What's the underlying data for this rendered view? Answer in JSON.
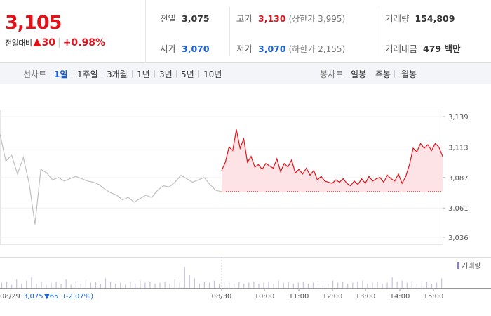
{
  "quote": {
    "price": "3,105",
    "change_label": "전일대비",
    "change_amount": "30",
    "change_percent": "+0.98%",
    "stats": [
      {
        "label": "전일",
        "value": "3,075",
        "tone": "neutral"
      },
      {
        "label": "고가",
        "value": "3,130",
        "tone": "up",
        "limit": "(상한가 3,995)"
      },
      {
        "label": "거래량",
        "value": "154,809",
        "tone": "neutral"
      },
      {
        "label": "시가",
        "value": "3,070",
        "tone": "down"
      },
      {
        "label": "저가",
        "value": "3,070",
        "tone": "down",
        "limit": "(하한가 2,155)"
      },
      {
        "label": "거래대금",
        "value": "479 백만",
        "tone": "neutral"
      }
    ]
  },
  "toolbar": {
    "line_chart_label": "선차트",
    "periods": [
      "1일",
      "1주일",
      "3개월",
      "1년",
      "3년",
      "5년",
      "10년"
    ],
    "selected_period": "1일",
    "candle_chart_label": "봉차트",
    "candles": [
      "일봉",
      "주봉",
      "월봉"
    ]
  },
  "chart_data": {
    "type": "line",
    "ylim": [
      3030,
      3145
    ],
    "yticks": [
      3036,
      3061,
      3087,
      3113,
      3139
    ],
    "prev_close": 3075,
    "series": [
      {
        "values": [
          3124,
          3101,
          3106,
          3090,
          3104,
          3082,
          3047,
          3094,
          3091,
          3085,
          3087,
          3084,
          3086,
          3088,
          3086,
          3084,
          3083,
          3081,
          3077,
          3074,
          3072,
          3068,
          3070,
          3066,
          3069,
          3072,
          3070,
          3076,
          3080,
          3079,
          3083,
          3089,
          3086,
          3083,
          3085,
          3087,
          3081,
          3076,
          3075
        ]
      },
      {
        "values": [
          3093,
          3100,
          3113,
          3110,
          3128,
          3112,
          3120,
          3100,
          3105,
          3096,
          3098,
          3094,
          3099,
          3097,
          3095,
          3103,
          3092,
          3099,
          3096,
          3102,
          3091,
          3094,
          3090,
          3095,
          3089,
          3093,
          3085,
          3088,
          3084,
          3083,
          3082,
          3085,
          3083,
          3086,
          3082,
          3080,
          3084,
          3081,
          3086,
          3082,
          3088,
          3084,
          3086,
          3087,
          3083,
          3089,
          3086,
          3084,
          3090,
          3082,
          3088,
          3098,
          3112,
          3109,
          3116,
          3112,
          3115,
          3110,
          3116,
          3113,
          3105
        ]
      }
    ],
    "volume_legend": "거래량",
    "x_labels": [
      "08/30",
      "10:00",
      "11:00",
      "12:00",
      "13:00",
      "14:00",
      "15:00"
    ],
    "prev_day": {
      "date": "08/29",
      "close": "3,075",
      "change": "▼65",
      "percent": "(-2.07%)"
    },
    "volume": [
      0.25,
      0.3,
      0.15,
      0.4,
      0.2,
      0.35,
      0.5,
      0.2,
      0.3,
      0.15,
      0.25,
      0.3,
      0.2,
      0.4,
      0.15,
      0.3,
      0.2,
      0.35,
      0.25,
      0.3,
      0.2,
      0.45,
      0.3,
      0.2,
      0.25,
      0.15,
      0.3,
      0.2,
      0.35,
      0.25,
      0.3,
      0.2,
      0.25,
      0.3,
      0.2,
      0.4,
      0.25,
      1.0,
      0.6,
      0.45,
      0.2,
      0.3,
      0.25,
      0.35,
      0.2,
      0.3,
      0.25,
      0.2,
      0.3,
      0.2,
      0.25,
      0.3,
      0.2,
      0.25,
      0.3,
      0.2,
      0.35,
      0.25,
      0.3,
      0.2,
      0.25,
      0.3,
      0.2,
      0.25,
      0.3,
      0.25,
      0.2,
      0.35,
      0.25,
      0.3,
      0.2,
      0.25,
      0.3,
      0.35,
      0.2,
      0.25,
      0.3,
      0.2,
      0.25,
      0.5,
      0.3,
      0.35,
      0.25,
      0.3,
      0.2,
      0.25,
      0.3,
      0.2,
      0.25,
      0.45
    ],
    "colors": {
      "up": "#e0131b",
      "down": "#1a62d8",
      "prev_line": "#c0c0c0",
      "area": "#fde3e5",
      "volume": "#c7c2e0",
      "legend_swatch": "#8a7fc7"
    }
  }
}
